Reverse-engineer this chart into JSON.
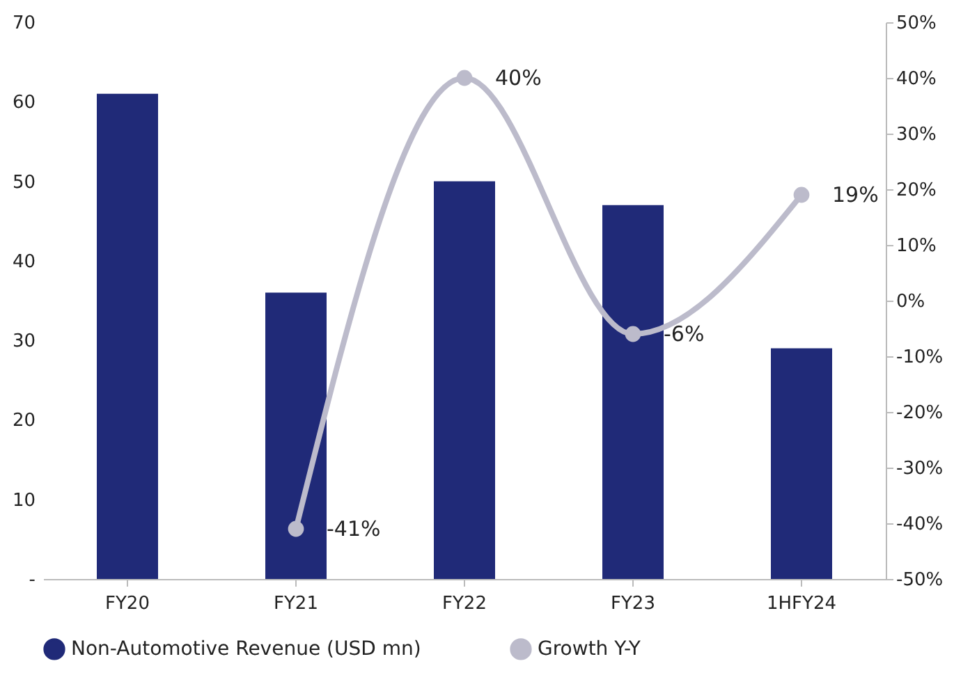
{
  "chart_data": {
    "type": "bar",
    "categories": [
      "FY20",
      "FY21",
      "FY22",
      "FY23",
      "1HFY24"
    ],
    "series": [
      {
        "name": "Non-Automotive Revenue (USD mn)",
        "color": "#202a78",
        "values": [
          61,
          36,
          50,
          47,
          29
        ]
      },
      {
        "name": "Growth Y-Y",
        "type": "line",
        "axis": "y2",
        "color": "#bcbbcb",
        "marker": "circle",
        "values": [
          null,
          -41,
          40,
          -6,
          19
        ],
        "value_labels": [
          null,
          "-41%",
          "40%",
          "-6%",
          "19%"
        ]
      }
    ],
    "ylim": [
      0,
      70
    ],
    "yticks": [
      {
        "value": 0,
        "label": "-"
      },
      10,
      20,
      30,
      40,
      50,
      60,
      70
    ],
    "y2lim": [
      -50,
      50
    ],
    "y2ticks": [
      {
        "value": -50,
        "label": "-50%"
      },
      {
        "value": -40,
        "label": "-40%"
      },
      {
        "value": -30,
        "label": "-30%"
      },
      {
        "value": -20,
        "label": "-20%"
      },
      {
        "value": -10,
        "label": "-10%"
      },
      {
        "value": 0,
        "label": "0%"
      },
      {
        "value": 10,
        "label": "10%"
      },
      {
        "value": 20,
        "label": "20%"
      },
      {
        "value": 30,
        "label": "30%"
      },
      {
        "value": 40,
        "label": "40%"
      },
      {
        "value": 50,
        "label": "50%"
      }
    ],
    "legend": "bottom"
  }
}
